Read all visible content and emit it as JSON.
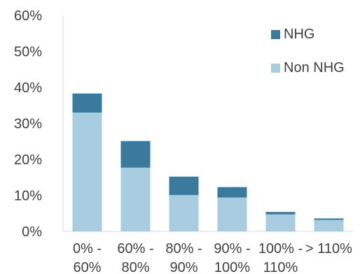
{
  "chart_data": {
    "type": "bar",
    "stacked": true,
    "categories": [
      [
        "0% -",
        "60%"
      ],
      [
        "60% -",
        "80%"
      ],
      [
        "80% -",
        "90%"
      ],
      [
        "90% -",
        "100%"
      ],
      [
        "100% -",
        "110%"
      ],
      [
        "> 110%"
      ]
    ],
    "series": [
      {
        "name": "Non NHG",
        "color": "#a9cde0",
        "values": [
          33.0,
          17.7,
          10.1,
          9.4,
          4.7,
          3.2
        ]
      },
      {
        "name": "NHG",
        "color": "#3a7a9c",
        "values": [
          5.3,
          7.4,
          5.1,
          2.9,
          0.7,
          0.4
        ]
      }
    ],
    "legend": {
      "placement": "top-right",
      "order": [
        "NHG",
        "Non NHG"
      ]
    },
    "y_ticks": [
      "0%",
      "10%",
      "20%",
      "30%",
      "40%",
      "50%",
      "60%"
    ],
    "ylim": [
      0,
      60
    ],
    "grid": false,
    "title": "",
    "xlabel": "",
    "ylabel": ""
  }
}
